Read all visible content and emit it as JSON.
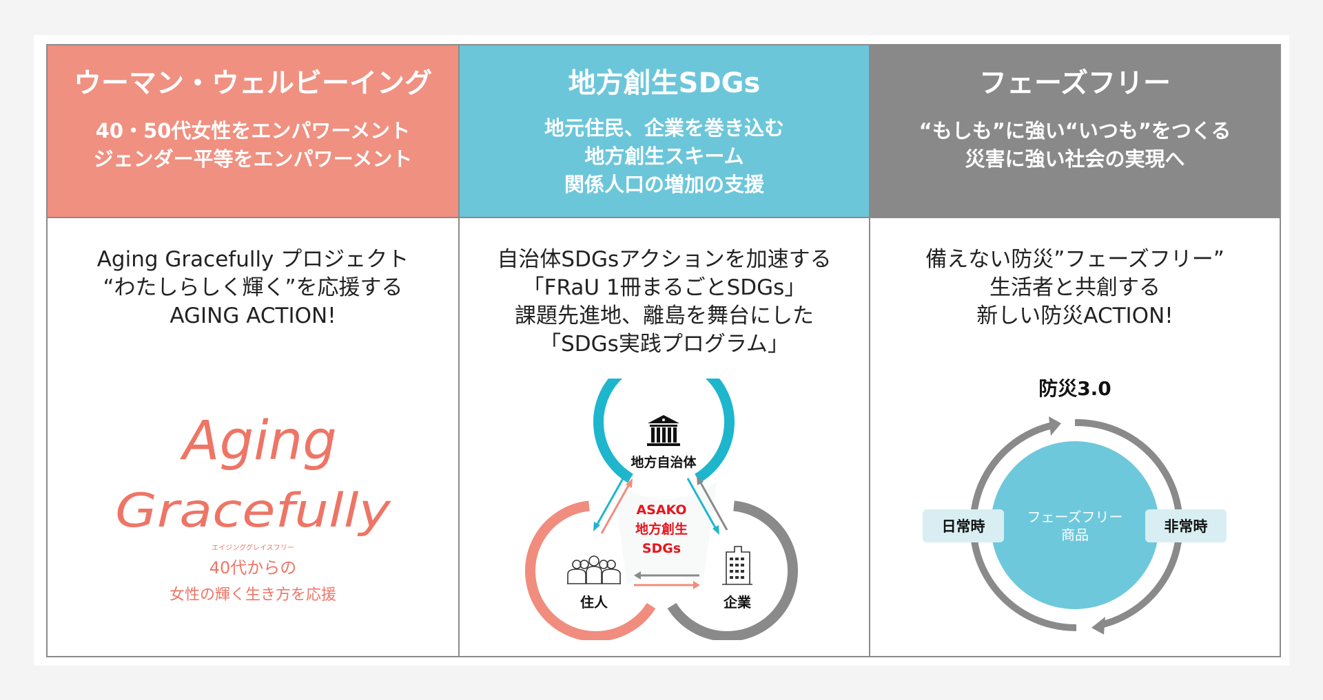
{
  "columns": [
    {
      "title": "ウーマン・ウェルビーイング",
      "subtitle": [
        "40・50代女性をエンパワーメント",
        "ジェンダー平等をエンパワーメント"
      ],
      "body": [
        "Aging Gracefully プロジェクト",
        "“わたしらしく輝く”を応援する",
        "AGING ACTION!"
      ],
      "color": "#f09080",
      "logo": {
        "line1": "Aging",
        "line2": "Gracefully",
        "ruby": "エイジンググレイスフリー",
        "tag1": "40代からの",
        "tag2": "女性の輝く生き方を応援"
      }
    },
    {
      "title": "地方創生SDGs",
      "subtitle": [
        "地元住民、企業を巻き込む",
        "地方創生スキーム",
        "関係人口の増加の支援"
      ],
      "body": [
        "自治体SDGsアクションを加速する",
        "「FRaU 1冊まるごとSDGs」",
        "課題先進地、離島を舞台にした",
        "「SDGs実践プログラム」"
      ],
      "color": "#6cc6da",
      "diagram": {
        "government": "地方自治体",
        "residents": "住人",
        "companies": "企業",
        "center": [
          "ASAKO",
          "地方創生",
          "SDGs"
        ],
        "colors": {
          "government": "#1eb6cc",
          "residents": "#f08d7e",
          "companies": "#8a8a8a",
          "center_text": "#e8141c"
        },
        "icons": [
          "bank-building-icon",
          "people-group-icon",
          "office-building-icon"
        ]
      }
    },
    {
      "title": "フェーズフリー",
      "subtitle": [
        "“もしも”に強い“いつも”をつくる",
        "災害に強い社会の実現へ"
      ],
      "body": [
        "備えない防災”フェーズフリー”",
        "生活者と共創する",
        "新しい防災ACTION!"
      ],
      "color": "#898989",
      "diagram": {
        "title": "防災3.0",
        "center": [
          "フェーズフリー",
          "商品"
        ],
        "left_label": "日常時",
        "right_label": "非常時",
        "colors": {
          "circle": "#6ec8dc",
          "ring": "#8a8a8a",
          "label_bg": "#d8eef3"
        }
      }
    }
  ]
}
